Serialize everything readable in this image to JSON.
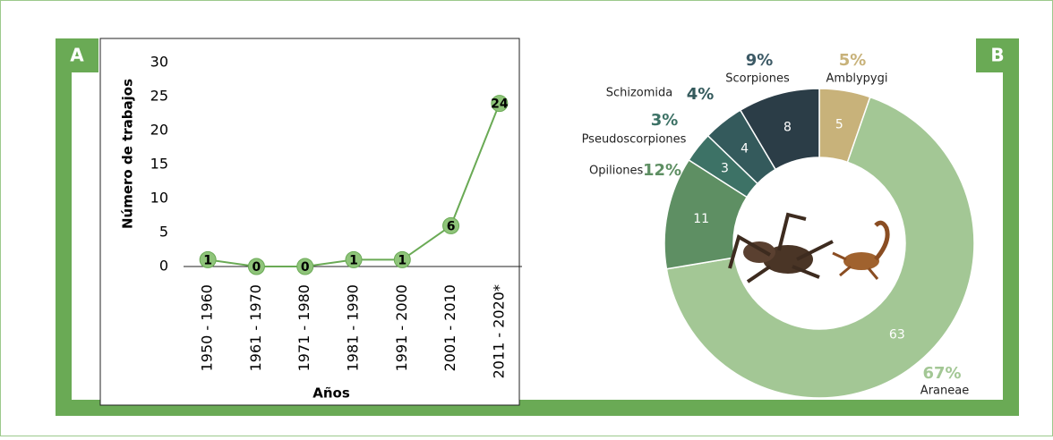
{
  "chart_data": [
    {
      "type": "line",
      "panel_label": "A",
      "y_label": "Número de trabajos",
      "x_label": "Años",
      "categories": [
        "1950 - 1960",
        "1961 - 1970",
        "1971 - 1980",
        "1981 - 1990",
        "1991 - 2000",
        "2001 - 2010",
        "2011 - 2020*"
      ],
      "values": [
        1,
        0,
        0,
        1,
        1,
        6,
        24
      ],
      "color": "#6aaa55",
      "marker_color": "#8fc47a",
      "ylim": [
        0,
        30
      ],
      "yticks": [
        0,
        5,
        10,
        15,
        20,
        25,
        30
      ]
    },
    {
      "type": "donut",
      "panel_label": "B",
      "categories": [
        "Amblypygi",
        "Araneae",
        "Opiliones",
        "Pseudoscorpiones",
        "Schizomida",
        "Scorpiones"
      ],
      "values": [
        5,
        63,
        11,
        3,
        4,
        8
      ],
      "percent_labels": [
        "5%",
        "67%",
        "12%",
        "3%",
        "4%",
        "9%"
      ],
      "colors": [
        "#c8b27a",
        "#a3c795",
        "#5e8f63",
        "#3d7266",
        "#345a5c",
        "#2b3d47"
      ]
    }
  ]
}
